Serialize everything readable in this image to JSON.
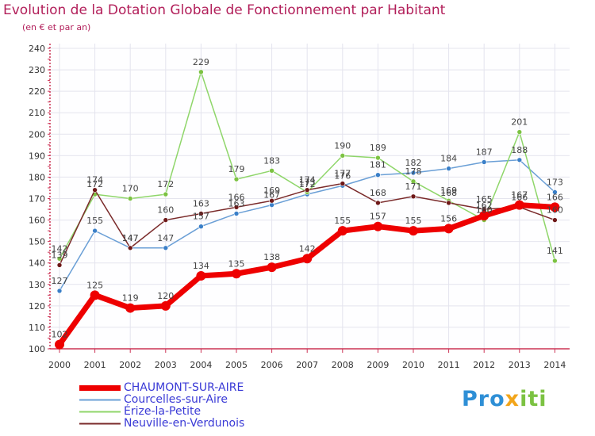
{
  "header": {
    "title": "Evolution de la Dotation Globale de Fonctionnement par Habitant",
    "subtitle": "(en € et par an)"
  },
  "logo": {
    "p1": "Pro",
    "p2": "x",
    "p3": "iti"
  },
  "colors": {
    "background": "#fefeff",
    "grid": "#e4e4ee",
    "axis": "#cc3355",
    "tick_text": "#333333",
    "label_text": "#444444"
  },
  "chart_data": {
    "type": "line",
    "title": "Evolution de la Dotation Globale de Fonctionnement par Habitant",
    "subtitle": "(en € et par an)",
    "xlabel": "",
    "ylabel": "",
    "x": [
      2000,
      2001,
      2002,
      2003,
      2004,
      2005,
      2006,
      2007,
      2008,
      2009,
      2010,
      2011,
      2012,
      2013,
      2014
    ],
    "ylim": [
      100,
      240
    ],
    "yticks": [
      100,
      110,
      120,
      130,
      140,
      150,
      160,
      170,
      180,
      190,
      200,
      210,
      220,
      230,
      240
    ],
    "grid": true,
    "legend_position": "bottom-left",
    "series": [
      {
        "name": "CHAUMONT-SUR-AIRE",
        "color": "#ee0000",
        "marker": "#ee0000",
        "width": 7,
        "label_color": "#555555",
        "values": [
          102,
          125,
          119,
          120,
          134,
          135,
          138,
          142,
          155,
          157,
          155,
          156,
          162,
          167,
          166
        ]
      },
      {
        "name": "Courcelles-sur-Aire",
        "color": "#6a9fd6",
        "marker": "#3a7fc8",
        "width": 1.5,
        "label_color": "#555555",
        "values": [
          127,
          155,
          147,
          147,
          157,
          163,
          167,
          172,
          176,
          181,
          182,
          184,
          187,
          188,
          173
        ]
      },
      {
        "name": "Érize-la-Petite",
        "color": "#8fd66a",
        "marker": "#7cc242",
        "width": 1.5,
        "label_color": "#555555",
        "values": [
          142,
          172,
          170,
          172,
          229,
          179,
          183,
          173,
          190,
          189,
          178,
          169,
          160,
          201,
          141
        ]
      },
      {
        "name": "Neuville-en-Verdunois",
        "color": "#7a2a2a",
        "marker": "#6e1818",
        "width": 1.5,
        "label_color": "#555555",
        "values": [
          139,
          174,
          147,
          160,
          163,
          166,
          169,
          174,
          177,
          168,
          171,
          168,
          165,
          166,
          160
        ]
      }
    ]
  }
}
